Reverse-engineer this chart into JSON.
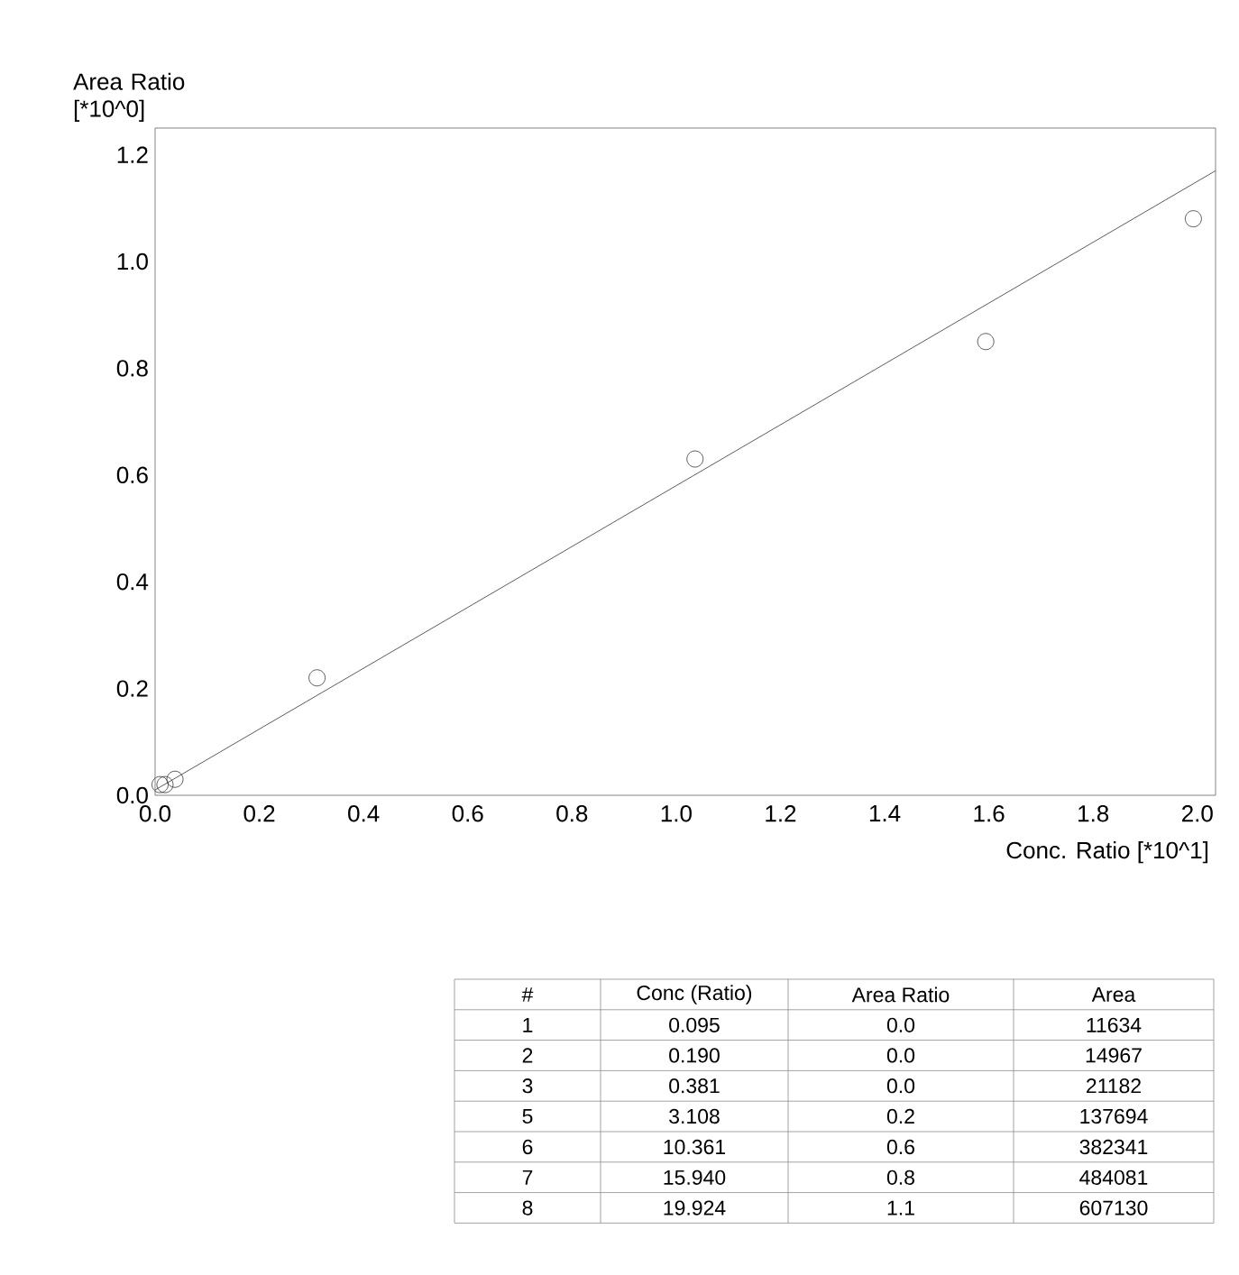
{
  "chart_data": {
    "type": "scatter",
    "xlabel": "Conc. Ratio [*10^1]",
    "ylabel": "Area Ratio [*10^0]",
    "xlim": [
      0,
      2.035
    ],
    "ylim": [
      0,
      1.25
    ],
    "xticks": [
      {
        "value": 0,
        "label": "0.0"
      },
      {
        "value": 0.2,
        "label": "0.2"
      },
      {
        "value": 0.4,
        "label": "0.4"
      },
      {
        "value": 0.6,
        "label": "0.6"
      },
      {
        "value": 0.8,
        "label": "0.8"
      },
      {
        "value": 1,
        "label": "1.0"
      },
      {
        "value": 1.2,
        "label": "1.2"
      },
      {
        "value": 1.4,
        "label": "1.4"
      },
      {
        "value": 1.6,
        "label": "1.6"
      },
      {
        "value": 1.8,
        "label": "1.8"
      },
      {
        "value": 2,
        "label": "2.0"
      }
    ],
    "yticks": [
      {
        "value": 0,
        "label": "0.0"
      },
      {
        "value": 0.2,
        "label": "0.2"
      },
      {
        "value": 0.4,
        "label": "0.4"
      },
      {
        "value": 0.6,
        "label": "0.6"
      },
      {
        "value": 0.8,
        "label": "0.8"
      },
      {
        "value": 1,
        "label": "1.0"
      },
      {
        "value": 1.2,
        "label": "1.2"
      }
    ],
    "series": [
      {
        "marker": "circle",
        "color": "#333333",
        "x": [
          0.0095,
          0.019,
          0.0381,
          0.3108,
          1.0361,
          1.594,
          1.9924
        ],
        "values": [
          0.02,
          0.02,
          0.03,
          0.22,
          0.63,
          0.85,
          1.08
        ]
      },
      {
        "type": "line",
        "marker": "none",
        "color": "#333333",
        "x": [
          0,
          2.035
        ],
        "values": [
          0.01,
          1.17
        ]
      }
    ],
    "grid": false,
    "annotations": [
      "#",
      "Conc (Ratio)",
      "Area Ratio",
      "Area",
      "1",
      "0.095",
      "0.0",
      "11634",
      "2",
      "0.190",
      "0.0",
      "14967",
      "3",
      "0.381",
      "0.0",
      "21182",
      "5",
      "3.108",
      "0.2",
      "137694",
      "6",
      "10.361",
      "0.6",
      "382341",
      "7",
      "15.940",
      "0.8",
      "484081",
      "8",
      "19.924",
      "1.1",
      "607130"
    ]
  }
}
